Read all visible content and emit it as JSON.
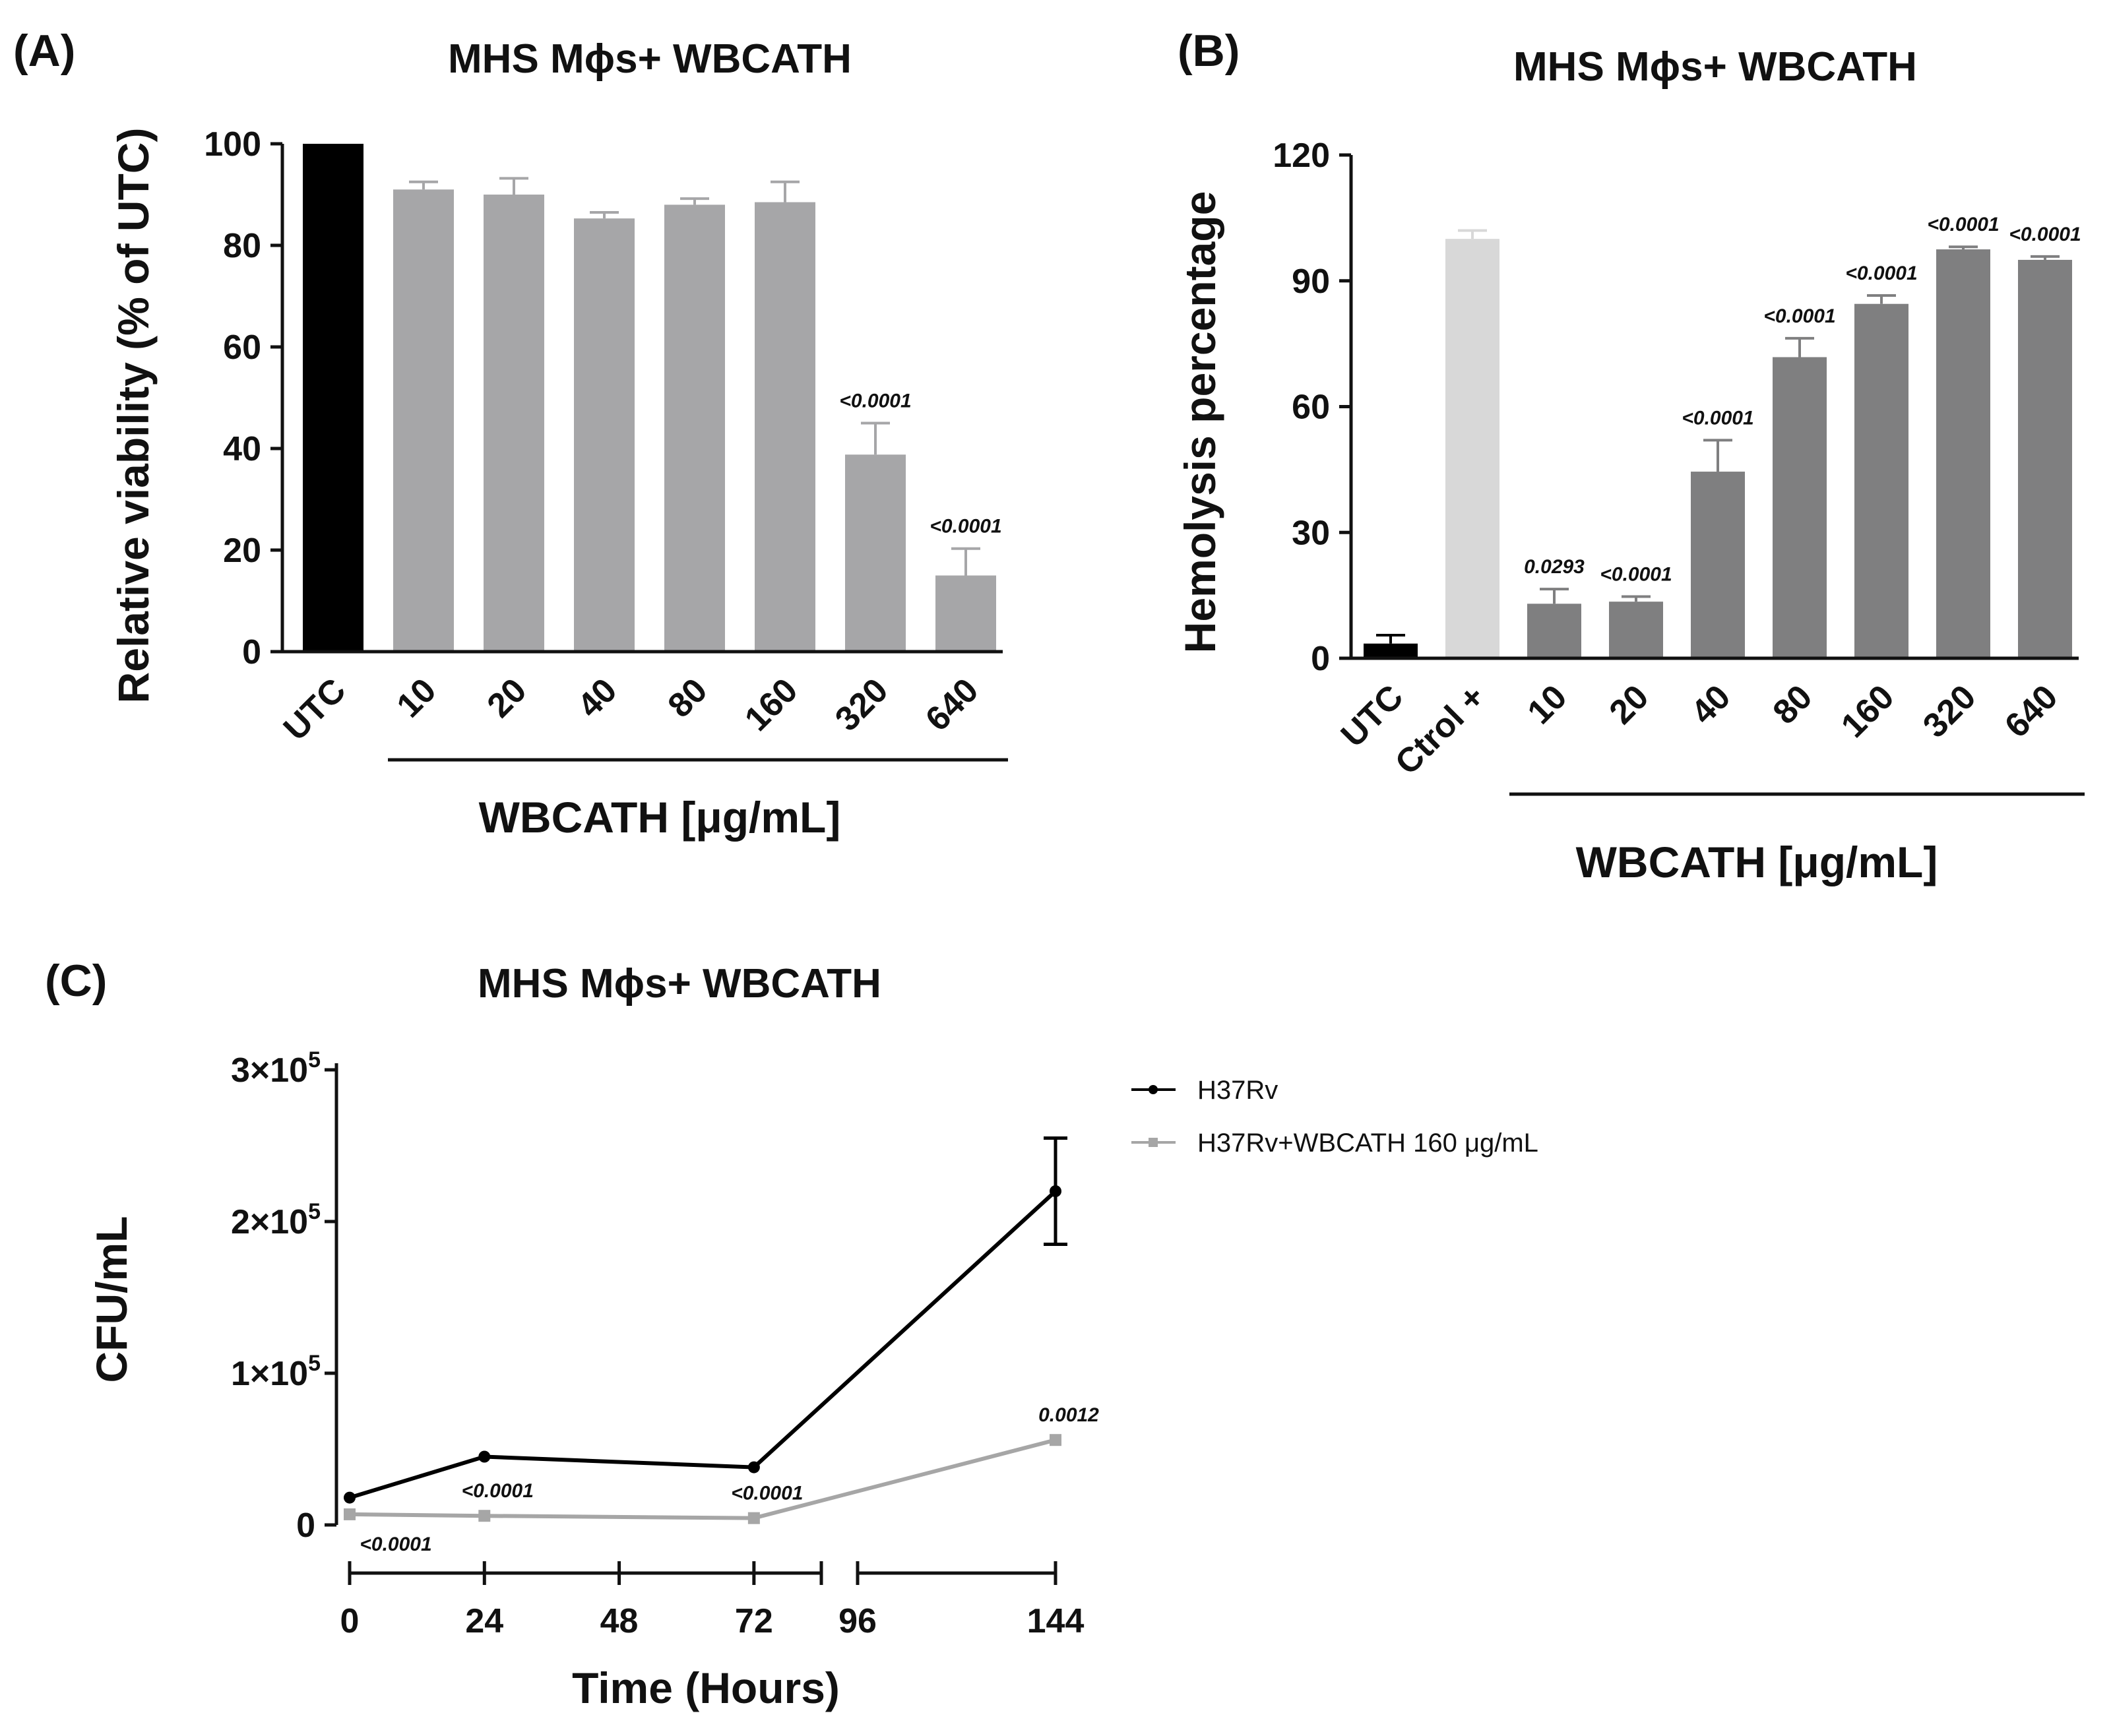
{
  "chart_data": [
    {
      "panel": "(A)",
      "type": "bar",
      "title": "MHS Mϕs+ WBCATH",
      "ylabel": "Relative viability (% of UTC)",
      "xlabel": "WBCATH [μg/mL]",
      "ylim": [
        0,
        100
      ],
      "yticks": [
        "0",
        "20",
        "40",
        "60",
        "80",
        "100"
      ],
      "categories": [
        "UTC",
        "10",
        "20",
        "40",
        "80",
        "160",
        "320",
        "640"
      ],
      "values": [
        100,
        91,
        90,
        85.3,
        88,
        88.5,
        38.8,
        15
      ],
      "errors": [
        0,
        1.5,
        3.2,
        1.2,
        1.2,
        4,
        6.2,
        5.3
      ],
      "colors": [
        "#000000",
        "#a6a6a8",
        "#a6a6a8",
        "#a6a6a8",
        "#a6a6a8",
        "#a6a6a8",
        "#a6a6a8",
        "#a6a6a8"
      ],
      "pvalues": [
        "",
        "",
        "",
        "",
        "",
        "",
        "<0.0001",
        "<0.0001"
      ]
    },
    {
      "panel": "(B)",
      "type": "bar",
      "title": "MHS Mϕs+ WBCATH",
      "ylabel": "Hemolysis percentage",
      "xlabel": "WBCATH [μg/mL]",
      "ylim": [
        0,
        120
      ],
      "yticks": [
        "0",
        "30",
        "60",
        "90",
        "120"
      ],
      "categories": [
        "UTC",
        "Ctrol +",
        "10",
        "20",
        "40",
        "80",
        "160",
        "320",
        "640"
      ],
      "values": [
        3.5,
        100,
        13,
        13.5,
        44.5,
        71.8,
        84.5,
        97.5,
        95
      ],
      "errors": [
        2,
        2,
        3.5,
        1.2,
        7.5,
        4.5,
        2,
        0.6,
        0.8
      ],
      "colors": [
        "#000000",
        "#d8d8d8",
        "#7f7f80",
        "#7f7f80",
        "#7f7f80",
        "#7f7f80",
        "#7f7f80",
        "#7f7f80",
        "#7f7f80"
      ],
      "pvalues": [
        "",
        "",
        "0.0293",
        "<0.0001",
        "<0.0001",
        "<0.0001",
        "<0.0001",
        "<0.0001",
        "<0.0001"
      ]
    },
    {
      "panel": "(C)",
      "type": "line",
      "title": "MHS Mϕs+ WBCATH",
      "ylabel": "CFU/mL",
      "xlabel": "Time (Hours)",
      "ylim": [
        0,
        300000
      ],
      "ytick_values": [
        0,
        100000,
        200000,
        300000
      ],
      "yticks": [
        {
          "base": "0",
          "exp": ""
        },
        {
          "base": "1×10",
          "exp": "5"
        },
        {
          "base": "2×10",
          "exp": "5"
        },
        {
          "base": "3×10",
          "exp": "5"
        }
      ],
      "xticks": [
        "0",
        "24",
        "48",
        "72",
        "96",
        "144"
      ],
      "series": [
        {
          "name": "H37Rv",
          "color": "#000000",
          "x": [
            0,
            24,
            72,
            144
          ],
          "y": [
            18000,
            45000,
            38000,
            220000
          ],
          "errors": [
            0,
            0,
            0,
            35000
          ]
        },
        {
          "name": "H37Rv+WBCATH 160 μg/mL",
          "color": "#a6a6a6",
          "x": [
            0,
            24,
            72,
            144
          ],
          "y": [
            7000,
            6000,
            4500,
            56000
          ],
          "errors": [
            0,
            0,
            0,
            0
          ]
        }
      ],
      "pvalues": [
        "<0.0001",
        "<0.0001",
        "<0.0001",
        "0.0012"
      ]
    }
  ]
}
